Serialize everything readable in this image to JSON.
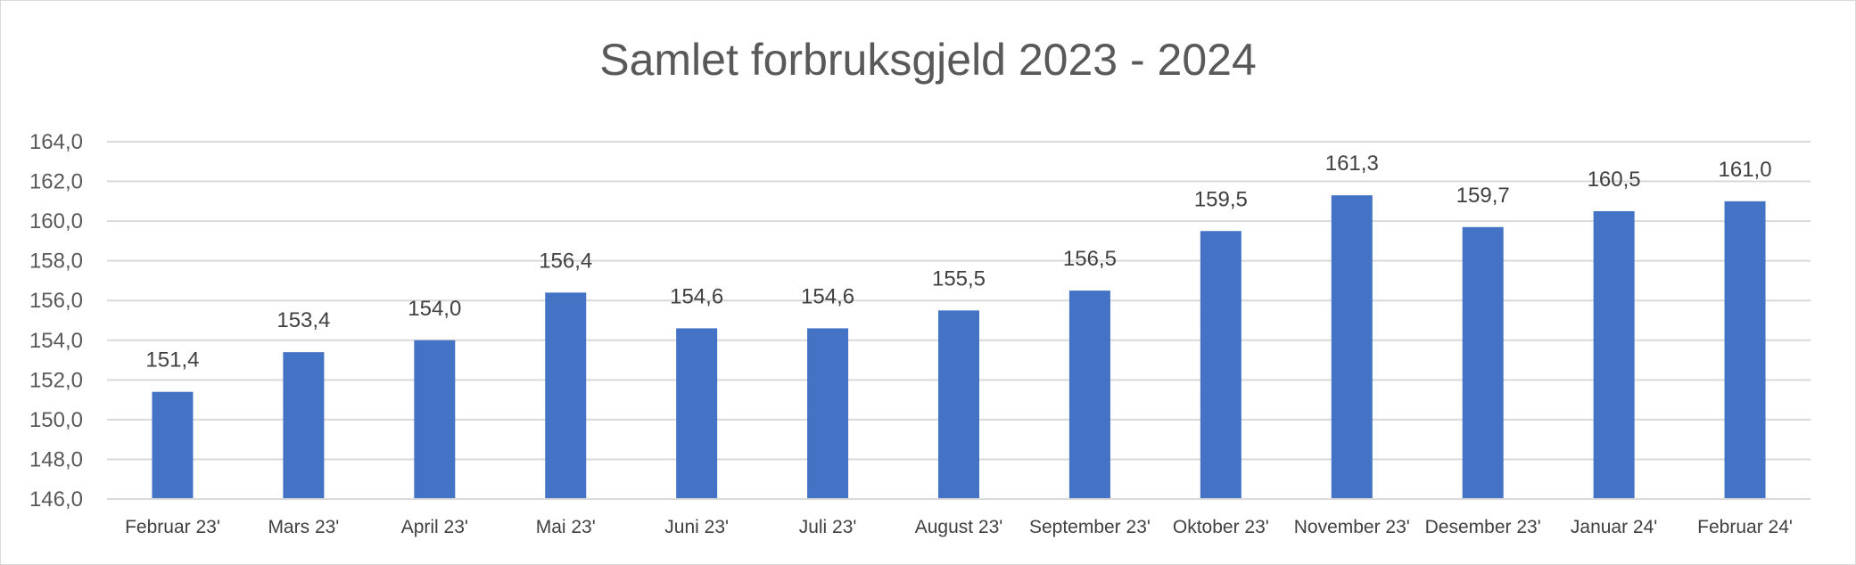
{
  "chart_data": {
    "type": "bar",
    "title": "Samlet forbruksgjeld 2023 - 2024",
    "xlabel": "",
    "ylabel": "",
    "categories": [
      "Februar 23'",
      "Mars 23'",
      "April 23'",
      "Mai 23'",
      "Juni 23'",
      "Juli 23'",
      "August 23'",
      "September 23'",
      "Oktober 23'",
      "November 23'",
      "Desember 23'",
      "Januar 24'",
      "Februar 24'"
    ],
    "values": [
      151.4,
      153.4,
      154.0,
      156.4,
      154.6,
      154.6,
      155.5,
      156.5,
      159.5,
      161.3,
      159.7,
      160.5,
      161.0
    ],
    "data_labels": [
      "151,4",
      "153,4",
      "154,0",
      "156,4",
      "154,6",
      "154,6",
      "155,5",
      "156,5",
      "159,5",
      "161,3",
      "159,7",
      "160,5",
      "161,0"
    ],
    "ylim": [
      146,
      164
    ],
    "yticks": [
      146,
      148,
      150,
      152,
      154,
      156,
      158,
      160,
      162,
      164
    ],
    "ytick_labels": [
      "146,0",
      "148,0",
      "150,0",
      "152,0",
      "154,0",
      "156,0",
      "158,0",
      "160,0",
      "162,0",
      "164,0"
    ],
    "grid": true,
    "legend": "none",
    "colors": {
      "bar": "#4472c4",
      "grid": "#d9d9d9",
      "text": "#595959"
    }
  }
}
